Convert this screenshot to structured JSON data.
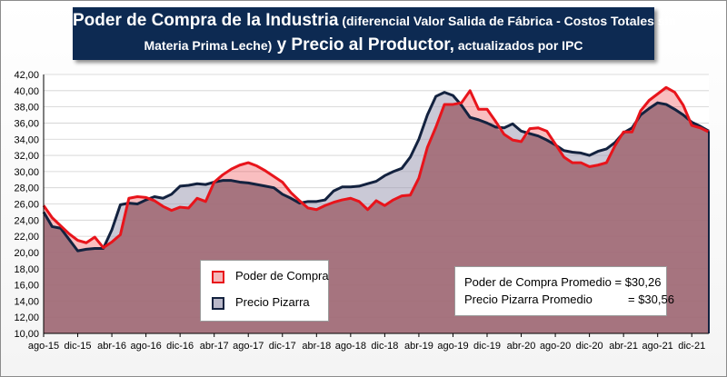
{
  "title": {
    "main1": "Poder de Compra de la Industria",
    "sub1": " (diferencial Valor Salida de Fábrica - Costos Totales sin",
    "sub2": "Materia Prima Leche)",
    "main2": " y Precio al Productor,",
    "sub3": " actualizados por IPC"
  },
  "colors": {
    "poder": "#e8141b",
    "pizarra": "#13223f",
    "pizarra_fill": "#9e9cb4",
    "area_fill": "#a06a74"
  },
  "legend": {
    "poder": "Poder de Compra",
    "pizarra": "Precio Pizarra"
  },
  "averages": {
    "poder_label": "Poder de Compra Promedio = ",
    "poder_value": "$30,26",
    "pizarra_label": "Precio Pizarra Promedio",
    "pizarra_value": "= $30,56"
  },
  "chart_data": {
    "type": "area",
    "x_start": "ago-15",
    "x_tick_labels": [
      "ago-15",
      "dic-15",
      "abr-16",
      "ago-16",
      "dic-16",
      "abr-17",
      "ago-17",
      "dic-17",
      "abr-18",
      "ago-18",
      "dic-18",
      "abr-19",
      "ago-19",
      "dic-19",
      "abr-20",
      "ago-20",
      "dic-20",
      "abr-21",
      "ago-21",
      "dic-21"
    ],
    "ylim": [
      10,
      42
    ],
    "y_ticks": [
      "10,00",
      "12,00",
      "14,00",
      "16,00",
      "18,00",
      "20,00",
      "22,00",
      "24,00",
      "26,00",
      "28,00",
      "30,00",
      "32,00",
      "34,00",
      "36,00",
      "38,00",
      "40,00",
      "42,00"
    ],
    "grid": true,
    "legend_position": "bottom-left",
    "series": [
      {
        "name": "Poder de Compra",
        "values": [
          25.8,
          24.3,
          23.3,
          22.3,
          21.5,
          21.2,
          21.9,
          20.6,
          21.3,
          22.2,
          26.7,
          26.9,
          26.8,
          26.4,
          25.7,
          25.2,
          25.6,
          25.5,
          26.7,
          26.3,
          28.7,
          29.6,
          30.3,
          30.8,
          31.1,
          30.7,
          30.1,
          29.4,
          28.7,
          27.4,
          26.4,
          25.5,
          25.3,
          25.8,
          26.2,
          26.5,
          26.7,
          26.3,
          25.3,
          26.4,
          25.8,
          26.5,
          27.0,
          27.1,
          29.2,
          33.0,
          35.5,
          38.3,
          38.3,
          38.5,
          40.0,
          37.7,
          37.7,
          36.2,
          34.6,
          33.9,
          33.7,
          35.3,
          35.4,
          35.0,
          33.4,
          31.8,
          31.1,
          31.1,
          30.6,
          30.8,
          31.1,
          33.2,
          34.9,
          34.9,
          37.5,
          38.8,
          39.6,
          40.4,
          39.8,
          38.2,
          35.7,
          35.4,
          34.9
        ]
      },
      {
        "name": "Precio Pizarra",
        "values": [
          25.0,
          23.2,
          23.0,
          21.6,
          20.2,
          20.4,
          20.5,
          20.5,
          22.8,
          25.9,
          26.1,
          26.0,
          26.5,
          26.9,
          26.7,
          27.2,
          28.2,
          28.3,
          28.5,
          28.4,
          28.7,
          28.9,
          28.9,
          28.7,
          28.6,
          28.4,
          28.2,
          28.0,
          27.2,
          26.7,
          26.1,
          26.3,
          26.3,
          26.5,
          27.6,
          28.1,
          28.1,
          28.2,
          28.5,
          28.8,
          29.5,
          30.0,
          30.4,
          31.8,
          34.0,
          37.0,
          39.3,
          39.8,
          39.4,
          38.2,
          36.7,
          36.4,
          36.0,
          35.5,
          35.4,
          35.9,
          35.0,
          34.7,
          34.4,
          33.9,
          33.3,
          32.6,
          32.4,
          32.3,
          32.0,
          32.5,
          32.8,
          33.6,
          34.8,
          35.4,
          37.0,
          37.8,
          38.5,
          38.3,
          37.7,
          37.0,
          36.1,
          35.6,
          35.0
        ]
      }
    ]
  }
}
